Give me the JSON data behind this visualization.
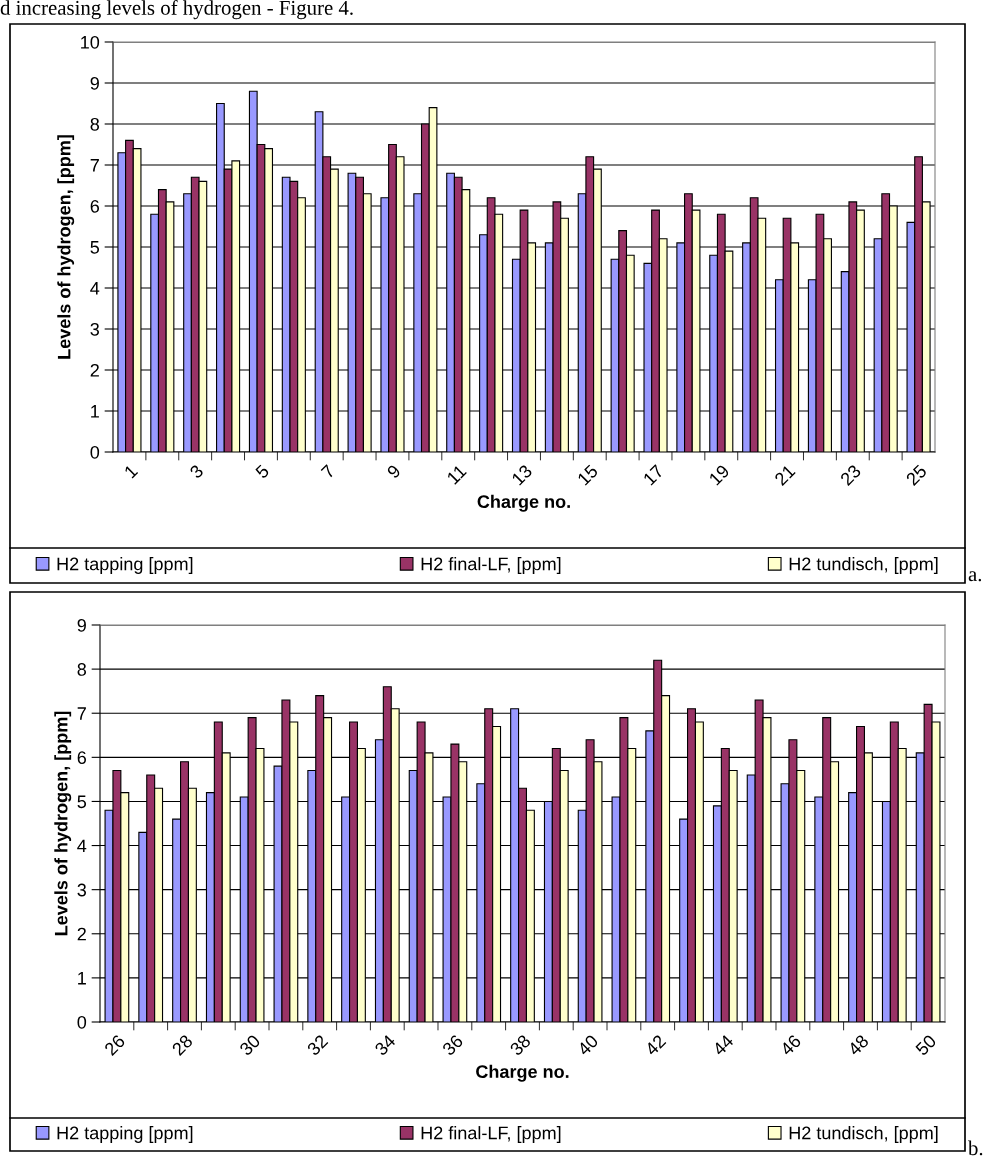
{
  "chart_data": [
    {
      "type": "bar",
      "xlabel": "Charge no.",
      "ylabel": "Levels of hydrogen, [ppm]",
      "annotations": [
        "d increasing levels of hydrogen - Figure 4.",
        "a."
      ],
      "categories": [
        "1",
        null,
        "3",
        null,
        "5",
        null,
        "7",
        null,
        "9",
        null,
        "11",
        null,
        "13",
        null,
        "15",
        null,
        "17",
        null,
        "19",
        null,
        "21",
        null,
        "23",
        null,
        "25"
      ],
      "series": [
        {
          "name": "H2 tapping [ppm]",
          "color": "#9999ff",
          "values": [
            7.3,
            5.8,
            6.3,
            8.5,
            8.8,
            6.7,
            8.3,
            6.8,
            6.2,
            6.3,
            6.8,
            5.3,
            4.7,
            5.1,
            6.3,
            4.7,
            4.6,
            5.1,
            4.8,
            5.1,
            4.2,
            4.2,
            4.4,
            5.2,
            5.6
          ]
        },
        {
          "name": "H2 final-LF, [ppm]",
          "color": "#993366",
          "values": [
            7.6,
            6.4,
            6.7,
            6.9,
            7.5,
            6.6,
            7.2,
            6.7,
            7.5,
            8.0,
            6.7,
            6.2,
            5.9,
            6.1,
            7.2,
            5.4,
            5.9,
            6.3,
            5.8,
            6.2,
            5.7,
            5.8,
            6.1,
            6.3,
            7.2
          ]
        },
        {
          "name": "H2 tundisch, [ppm]",
          "color": "#ffffcc",
          "values": [
            7.4,
            6.1,
            6.6,
            7.1,
            7.4,
            6.2,
            6.9,
            6.3,
            7.2,
            8.4,
            6.4,
            5.8,
            5.1,
            5.7,
            6.9,
            4.8,
            5.2,
            5.9,
            4.9,
            5.7,
            5.1,
            5.2,
            5.9,
            6.0,
            6.1
          ]
        }
      ],
      "ylim": [
        0,
        10
      ],
      "yticks": [
        0,
        1,
        2,
        3,
        4,
        5,
        6,
        7,
        8,
        9,
        10
      ],
      "grid": "y",
      "legend": "bottom"
    },
    {
      "type": "bar",
      "xlabel": "Charge no.",
      "ylabel": "Levels of hydrogen, [ppm]",
      "annotations": [
        "b."
      ],
      "categories": [
        "26",
        null,
        "28",
        null,
        "30",
        null,
        "32",
        null,
        "34",
        null,
        "36",
        null,
        "38",
        null,
        "40",
        null,
        "42",
        null,
        "44",
        null,
        "46",
        null,
        "48",
        null,
        "50"
      ],
      "series": [
        {
          "name": "H2 tapping [ppm]",
          "color": "#9999ff",
          "values": [
            4.8,
            4.3,
            4.6,
            5.2,
            5.1,
            5.8,
            5.7,
            5.1,
            6.4,
            5.7,
            5.1,
            5.4,
            7.1,
            5.0,
            4.8,
            5.1,
            6.6,
            4.6,
            4.9,
            5.6,
            5.4,
            5.1,
            5.2,
            5.0,
            6.1
          ]
        },
        {
          "name": "H2 final-LF, [ppm]",
          "color": "#993366",
          "values": [
            5.7,
            5.6,
            5.9,
            6.8,
            6.9,
            7.3,
            7.4,
            6.8,
            7.6,
            6.8,
            6.3,
            7.1,
            5.3,
            6.2,
            6.4,
            6.9,
            8.2,
            7.1,
            6.2,
            7.3,
            6.4,
            6.9,
            6.7,
            6.8,
            7.2
          ]
        },
        {
          "name": "H2 tundisch, [ppm]",
          "color": "#ffffcc",
          "values": [
            5.2,
            5.3,
            5.3,
            6.1,
            6.2,
            6.8,
            6.9,
            6.2,
            7.1,
            6.1,
            5.9,
            6.7,
            4.8,
            5.7,
            5.9,
            6.2,
            7.4,
            6.8,
            5.7,
            6.9,
            5.7,
            5.9,
            6.1,
            6.2,
            6.8
          ]
        }
      ],
      "ylim": [
        0,
        9
      ],
      "yticks": [
        0,
        1,
        2,
        3,
        4,
        5,
        6,
        7,
        8,
        9
      ],
      "grid": "y",
      "legend": "bottom"
    }
  ]
}
